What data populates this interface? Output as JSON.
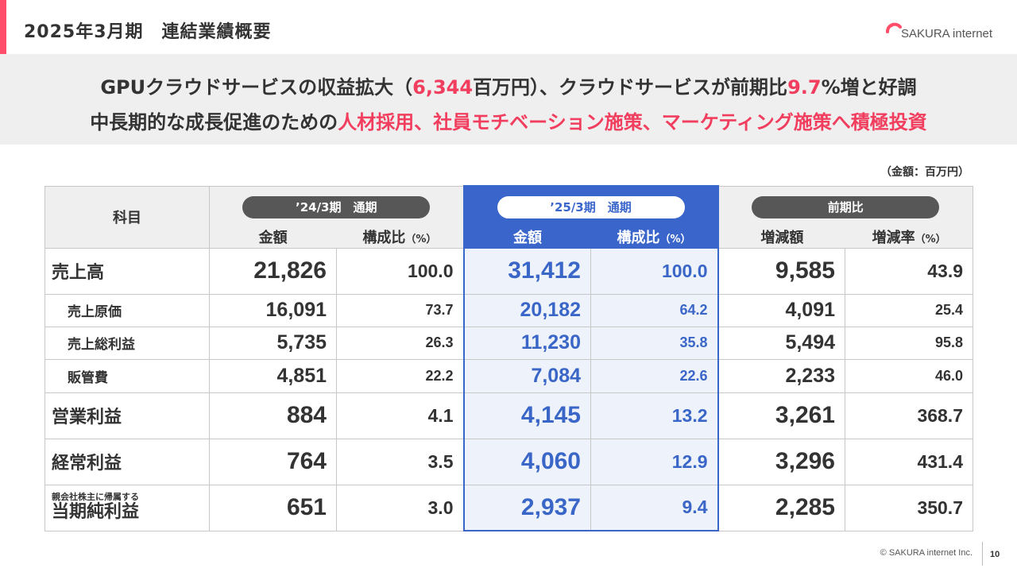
{
  "header": {
    "title": "2025年3月期　連結業績概要",
    "logo_text": "SAKURA internet"
  },
  "banner": {
    "line1": [
      "GPUクラウドサービスの収益拡大（",
      "6,344",
      "百万円）、クラウドサービスが前期比",
      "9.7",
      "%増と好調"
    ],
    "line2": [
      "中長期的な成長促進のための",
      "人材採用、社員モチベーション施策、マーケティング施策へ積極投資"
    ]
  },
  "unit_note": "（金額：百万円）",
  "table": {
    "subject_header": "科目",
    "period_prev": "’24/3期　通期",
    "period_curr": "’25/3期　通期",
    "period_yoy": "前期比",
    "amount": "金額",
    "ratio": "構成比",
    "ratio_unit": "（%）",
    "change": "増減額",
    "change_rate": "増減率",
    "rows": [
      {
        "label": "売上高",
        "prev": "21,826",
        "prev_ratio": "100.0",
        "curr": "31,412",
        "curr_ratio": "100.0",
        "diff": "9,585",
        "rate": "43.9"
      },
      {
        "label": "売上原価",
        "prev": "16,091",
        "prev_ratio": "73.7",
        "curr": "20,182",
        "curr_ratio": "64.2",
        "diff": "4,091",
        "rate": "25.4"
      },
      {
        "label": "売上総利益",
        "prev": "5,735",
        "prev_ratio": "26.3",
        "curr": "11,230",
        "curr_ratio": "35.8",
        "diff": "5,494",
        "rate": "95.8"
      },
      {
        "label": "販管費",
        "prev": "4,851",
        "prev_ratio": "22.2",
        "curr": "7,084",
        "curr_ratio": "22.6",
        "diff": "2,233",
        "rate": "46.0"
      },
      {
        "label": "営業利益",
        "prev": "884",
        "prev_ratio": "4.1",
        "curr": "4,145",
        "curr_ratio": "13.2",
        "diff": "3,261",
        "rate": "368.7"
      },
      {
        "label": "経常利益",
        "prev": "764",
        "prev_ratio": "3.5",
        "curr": "4,060",
        "curr_ratio": "12.9",
        "diff": "3,296",
        "rate": "431.4"
      },
      {
        "label_small": "親会社株主に帰属する",
        "label": "当期純利益",
        "prev": "651",
        "prev_ratio": "3.0",
        "curr": "2,937",
        "curr_ratio": "9.4",
        "diff": "2,285",
        "rate": "350.7"
      }
    ]
  },
  "footer": {
    "copyright": "© SAKURA internet Inc.",
    "page": "10"
  },
  "colors": {
    "accent": "#ff4d6a",
    "highlight_text": "#f23e5e",
    "current_period_blue": "#3a66cc",
    "current_period_fill": "#edf2fb"
  }
}
